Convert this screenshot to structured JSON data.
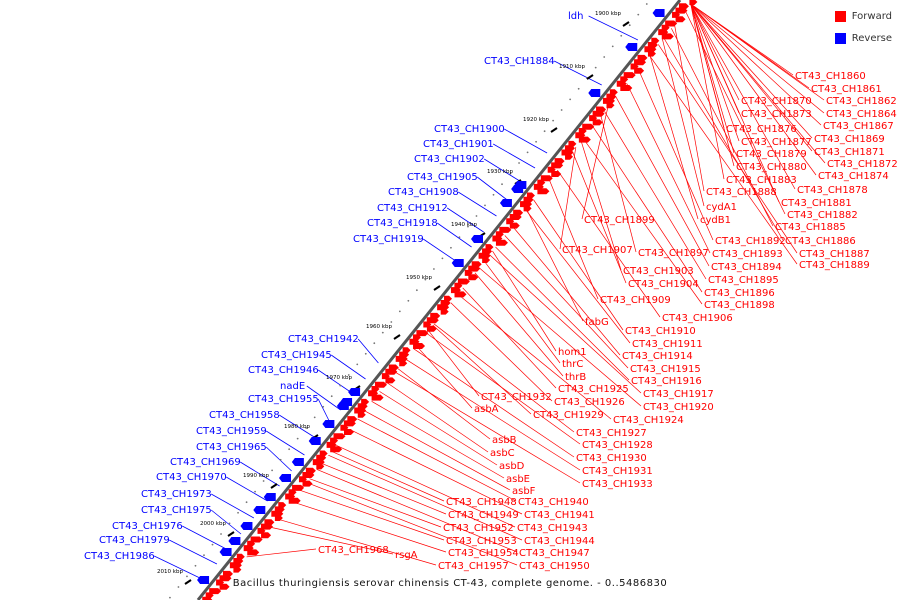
{
  "legend": {
    "forward_label": "Forward",
    "reverse_label": "Reverse",
    "forward_color": "#ff0000",
    "reverse_color": "#0000ff"
  },
  "colors": {
    "backbone": "#555555",
    "tick": "#000000"
  },
  "caption": "Bacillus thuringiensis serovar chinensis CT-43, complete genome. - 0..5486830",
  "ticks": [
    "1900 kbp",
    "1910 kbp",
    "1920 kbp",
    "1930 kbp",
    "1940 kbp",
    "1950 kbp",
    "1960 kbp",
    "1970 kbp",
    "1980 kbp",
    "1990 kbp",
    "2000 kbp",
    "2010 kbp"
  ],
  "reverse_labels": [
    "ldh",
    "CT43_CH1884",
    "CT43_CH1900",
    "CT43_CH1901",
    "CT43_CH1902",
    "CT43_CH1905",
    "CT43_CH1908",
    "CT43_CH1912",
    "CT43_CH1918",
    "CT43_CH1919",
    "CT43_CH1942",
    "CT43_CH1945",
    "CT43_CH1946",
    "nadE",
    "CT43_CH1955",
    "CT43_CH1958",
    "CT43_CH1959",
    "CT43_CH1965",
    "CT43_CH1969",
    "CT43_CH1970",
    "CT43_CH1973",
    "CT43_CH1975",
    "CT43_CH1976",
    "CT43_CH1979",
    "CT43_CH1986"
  ],
  "forward_labels": [
    "CT43_CH1860",
    "CT43_CH1861",
    "CT43_CH1862",
    "CT43_CH1870",
    "CT43_CH1864",
    "CT43_CH1873",
    "CT43_CH1867",
    "CT43_CH1876",
    "CT43_CH1869",
    "CT43_CH1877",
    "CT43_CH1879",
    "CT43_CH1871",
    "CT43_CH1872",
    "CT43_CH1880",
    "CT43_CH1874",
    "CT43_CH1883",
    "CT43_CH1878",
    "CT43_CH1888",
    "CT43_CH1881",
    "cydA1",
    "CT43_CH1882",
    "cydB1",
    "CT43_CH1899",
    "CT43_CH1885",
    "CT43_CH1892",
    "CT43_CH1886",
    "CT43_CH1907",
    "CT43_CH1897",
    "CT43_CH1893",
    "CT43_CH1887",
    "CT43_CH1889",
    "CT43_CH1894",
    "CT43_CH1903",
    "CT43_CH1895",
    "CT43_CH1904",
    "CT43_CH1896",
    "CT43_CH1909",
    "CT43_CH1898",
    "CT43_CH1906",
    "fabG",
    "CT43_CH1910",
    "CT43_CH1911",
    "hom1",
    "CT43_CH1914",
    "thrC",
    "CT43_CH1915",
    "thrB",
    "CT43_CH1916",
    "CT43_CH1925",
    "CT43_CH1917",
    "CT43_CH1932",
    "CT43_CH1926",
    "CT43_CH1920",
    "asbA",
    "CT43_CH1929",
    "CT43_CH1924",
    "CT43_CH1927",
    "asbB",
    "CT43_CH1928",
    "asbC",
    "CT43_CH1930",
    "asbD",
    "CT43_CH1931",
    "asbE",
    "CT43_CH1933",
    "asbF",
    "CT43_CH1948",
    "CT43_CH1940",
    "CT43_CH1949",
    "CT43_CH1941",
    "CT43_CH1952",
    "CT43_CH1943",
    "CT43_CH1953",
    "CT43_CH1944",
    "CT43_CH1968",
    "CT43_CH1954",
    "CT43_CH1947",
    "rsgA",
    "CT43_CH1957",
    "CT43_CH1950"
  ]
}
